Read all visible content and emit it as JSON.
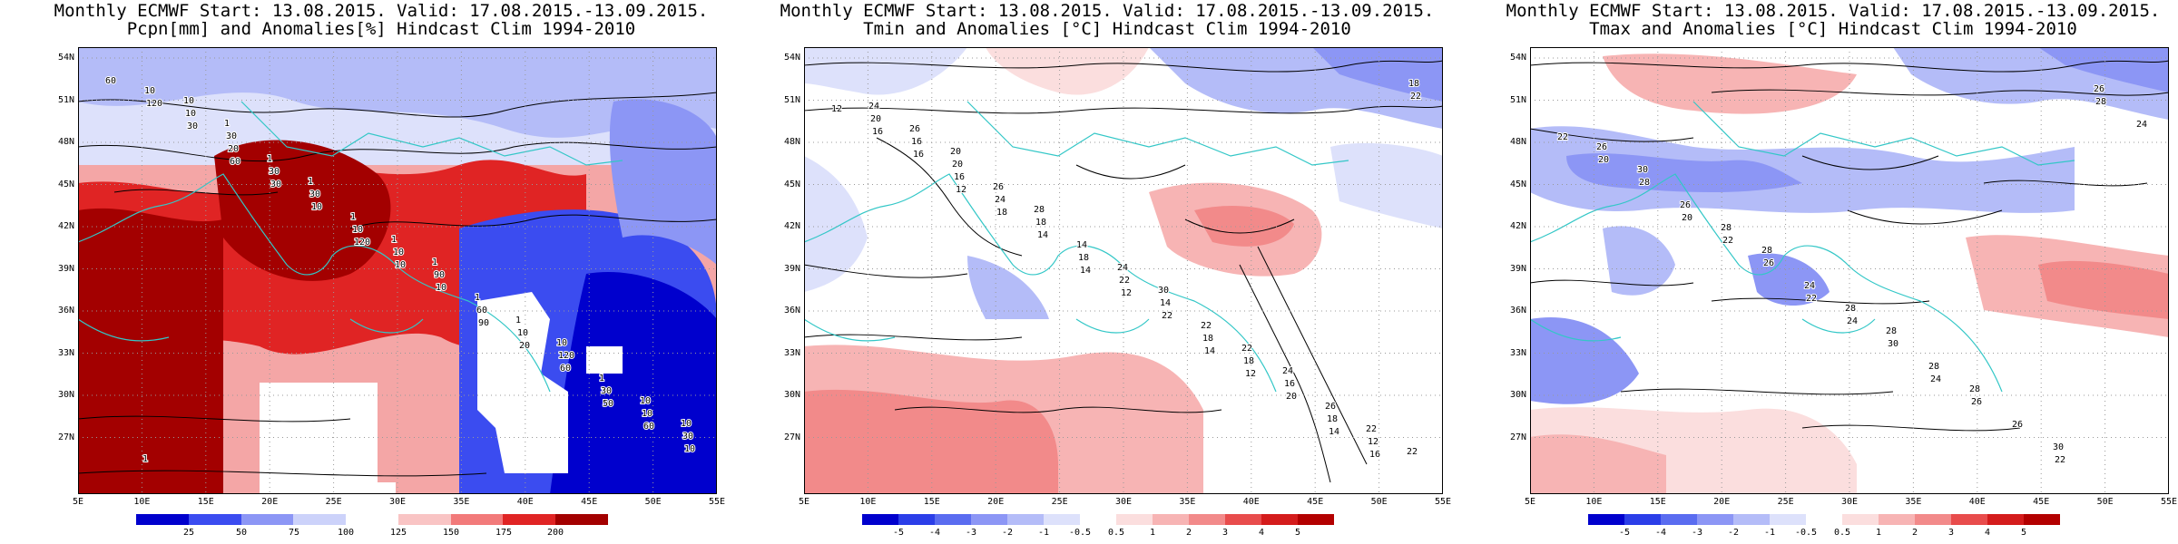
{
  "panels": [
    {
      "title_line1": "Monthly ECMWF Start: 13.08.2015. Valid: 17.08.2015.-13.09.2015.",
      "title_line2": "Pcpn[mm] and Anomalies[%] Hindcast Clim 1994-2010",
      "colorbar_ticks": [
        "25",
        "50",
        "75",
        "100",
        "125",
        "150",
        "175",
        "200"
      ],
      "colorbar_colors": [
        "#0000cd",
        "#3b4cf0",
        "#8c96f5",
        "#ccd2fa",
        "#ffffff",
        "#f9c4c4",
        "#f27a7a",
        "#e02424",
        "#a30000"
      ],
      "contour_labels": [
        "60",
        "60",
        "120",
        "90",
        "50",
        "120",
        "30",
        "10",
        "20",
        "60",
        "30",
        "10",
        "10",
        "60",
        "10",
        "20",
        "10",
        "60",
        "30",
        "10",
        "30",
        "10",
        "10",
        "10",
        "10",
        "30",
        "90",
        "120",
        "30",
        "30",
        "1",
        "1",
        "1",
        "1",
        "1",
        "1",
        "1",
        "10",
        "10",
        "1",
        "1",
        "10",
        "10",
        "1"
      ]
    },
    {
      "title_line1": "Monthly ECMWF Start: 13.08.2015. Valid: 17.08.2015.-13.09.2015.",
      "title_line2": "Tmin and Anomalies [°C] Hindcast Clim 1994-2010",
      "colorbar_ticks": [
        "-5",
        "-4",
        "-3",
        "-2",
        "-1",
        "-0.5",
        "0.5",
        "1",
        "2",
        "3",
        "4",
        "5"
      ],
      "colorbar_colors": [
        "#0000cd",
        "#2b3ee8",
        "#5a6cf0",
        "#8c96f5",
        "#b4bcf8",
        "#dde1fb",
        "#ffffff",
        "#fbdede",
        "#f7b4b4",
        "#f28a8a",
        "#e84c4c",
        "#d41c1c",
        "#b30000"
      ],
      "contour_labels": [
        "12",
        "12",
        "14",
        "14",
        "14",
        "16",
        "18",
        "12",
        "12",
        "16",
        "16",
        "14",
        "22",
        "20",
        "22",
        "16",
        "18",
        "18",
        "18",
        "20",
        "24",
        "22",
        "18",
        "12",
        "16",
        "18",
        "14",
        "16",
        "18",
        "20",
        "14",
        "22",
        "26",
        "24",
        "26",
        "24",
        "22",
        "22",
        "26",
        "28",
        "30",
        "24",
        "22",
        "20"
      ]
    },
    {
      "title_line1": "Monthly ECMWF Start: 13.08.2015. Valid: 17.08.2015.-13.09.2015.",
      "title_line2": "Tmax and Anomalies [°C] Hindcast Clim 1994-2010",
      "colorbar_ticks": [
        "-5",
        "-4",
        "-3",
        "-2",
        "-1",
        "-0.5",
        "0.5",
        "1",
        "2",
        "3",
        "4",
        "5"
      ],
      "colorbar_colors": [
        "#0000cd",
        "#2b3ee8",
        "#5a6cf0",
        "#8c96f5",
        "#b4bcf8",
        "#dde1fb",
        "#ffffff",
        "#fbdede",
        "#f7b4b4",
        "#f28a8a",
        "#e84c4c",
        "#d41c1c",
        "#b30000"
      ],
      "contour_labels": [
        "22",
        "20",
        "22",
        "24",
        "22",
        "20",
        "22",
        "24",
        "26",
        "28",
        "28",
        "26",
        "30",
        "26",
        "24",
        "26",
        "24",
        "28",
        "30",
        "26",
        "28",
        "28",
        "28",
        "26",
        "30",
        "28",
        "28"
      ]
    }
  ],
  "lat_labels": [
    "54N",
    "51N",
    "48N",
    "45N",
    "42N",
    "39N",
    "36N",
    "33N",
    "30N",
    "27N"
  ],
  "lon_labels": [
    "5E",
    "10E",
    "15E",
    "20E",
    "25E",
    "30E",
    "35E",
    "40E",
    "45E",
    "50E",
    "55E"
  ],
  "colors": {
    "coast": "#33c7c7",
    "contour": "#000000"
  }
}
